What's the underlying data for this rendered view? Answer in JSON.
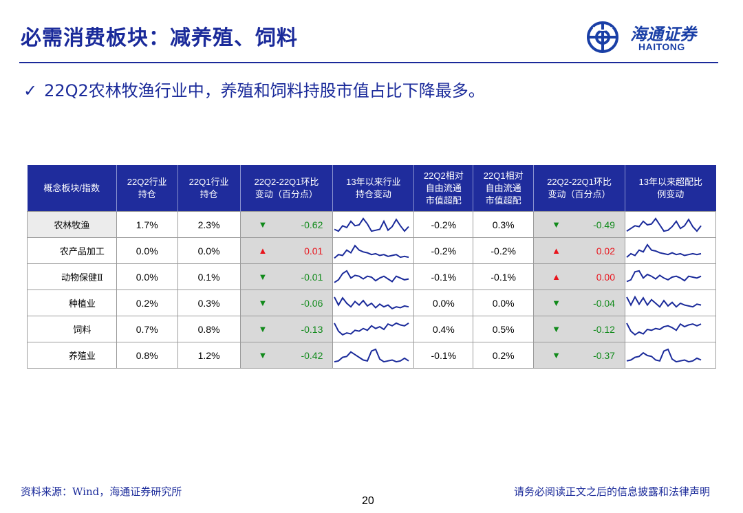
{
  "title": "必需消费板块：减养殖、饲料",
  "logo": {
    "cn": "海通证券",
    "en": "HAITONG"
  },
  "bullet": "22Q2农林牧渔行业中，养殖和饲料持股市值占比下降最多。",
  "table": {
    "headers": [
      [
        "概念板块/指数"
      ],
      [
        "22Q2行业",
        "持仓"
      ],
      [
        "22Q1行业",
        "持仓"
      ],
      [
        "22Q2-22Q1环比",
        "变动（百分点）"
      ],
      [
        "13年以来行业",
        "持仓变动"
      ],
      [
        "22Q2相对",
        "自由流通",
        "市值超配"
      ],
      [
        "22Q1相对",
        "自由流通",
        "市值超配"
      ],
      [
        "22Q2-22Q1环比",
        "变动（百分点）"
      ],
      [
        "13年以来超配比",
        "例变动"
      ]
    ],
    "rows": [
      {
        "name": "农林牧渔",
        "q2": "1.7%",
        "q1": "2.3%",
        "chg_dir": "down",
        "chg": "-0.62",
        "oq2": "-0.2%",
        "oq1": "0.3%",
        "ochg_dir": "down",
        "ochg": "-0.49"
      },
      {
        "name": "农产品加工",
        "q2": "0.0%",
        "q1": "0.0%",
        "chg_dir": "up",
        "chg": "0.01",
        "oq2": "-0.2%",
        "oq1": "-0.2%",
        "ochg_dir": "up",
        "ochg": "0.02"
      },
      {
        "name": "动物保健Ⅱ",
        "q2": "0.0%",
        "q1": "0.1%",
        "chg_dir": "down",
        "chg": "-0.01",
        "oq2": "-0.1%",
        "oq1": "-0.1%",
        "ochg_dir": "up",
        "ochg": "0.00"
      },
      {
        "name": "种植业",
        "q2": "0.2%",
        "q1": "0.3%",
        "chg_dir": "down",
        "chg": "-0.06",
        "oq2": "0.0%",
        "oq1": "0.0%",
        "ochg_dir": "down",
        "ochg": "-0.04"
      },
      {
        "name": "饲料",
        "q2": "0.7%",
        "q1": "0.8%",
        "chg_dir": "down",
        "chg": "-0.13",
        "oq2": "0.4%",
        "oq1": "0.5%",
        "ochg_dir": "down",
        "ochg": "-0.12"
      },
      {
        "name": "养殖业",
        "q2": "0.8%",
        "q1": "1.2%",
        "chg_dir": "down",
        "chg": "-0.42",
        "oq2": "-0.1%",
        "oq1": "0.2%",
        "ochg_dir": "down",
        "ochg": "-0.37"
      }
    ],
    "up_symbol": "▲",
    "down_symbol": "▼"
  },
  "footer": {
    "source": "资料来源：Wind，海通证券研究所",
    "disclaimer": "请务必阅读正文之后的信息披露和法律声明",
    "page": "20"
  },
  "colors": {
    "header_bg": "#1f2c9c",
    "title": "#1a2a9a",
    "up": "#e8141c",
    "down": "#108a1a",
    "sparkline": "#1a2a9a"
  }
}
